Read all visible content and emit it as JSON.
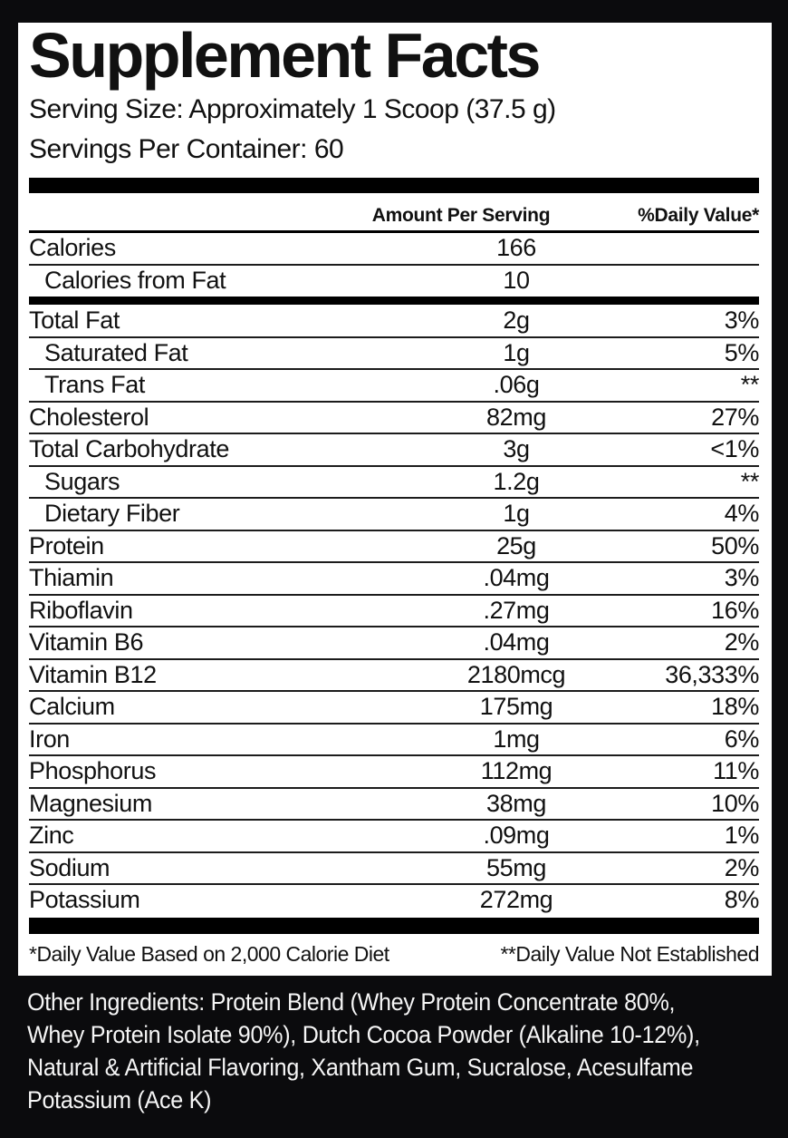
{
  "title": "Supplement Facts",
  "serving": {
    "size_line": "Serving Size: Approximately 1 Scoop (37.5 g)",
    "per_container_line": "Servings Per Container: 60"
  },
  "table": {
    "col_amount_header": "Amount Per Serving",
    "col_dv_header": "%Daily Value*",
    "calorie_rows": [
      {
        "label": "Calories",
        "amount": "166",
        "dv": "",
        "indent": false
      },
      {
        "label": "Calories from Fat",
        "amount": "10",
        "dv": "",
        "indent": true
      }
    ],
    "nutrient_rows": [
      {
        "label": "Total Fat",
        "amount": "2g",
        "dv": "3%",
        "indent": false
      },
      {
        "label": "Saturated Fat",
        "amount": "1g",
        "dv": "5%",
        "indent": true
      },
      {
        "label": "Trans Fat",
        "amount": ".06g",
        "dv": "**",
        "indent": true
      },
      {
        "label": "Cholesterol",
        "amount": "82mg",
        "dv": "27%",
        "indent": false
      },
      {
        "label": "Total Carbohydrate",
        "amount": "3g",
        "dv": "<1%",
        "indent": false
      },
      {
        "label": "Sugars",
        "amount": "1.2g",
        "dv": "**",
        "indent": true
      },
      {
        "label": "Dietary Fiber",
        "amount": "1g",
        "dv": "4%",
        "indent": true
      },
      {
        "label": "Protein",
        "amount": "25g",
        "dv": "50%",
        "indent": false
      },
      {
        "label": "Thiamin",
        "amount": ".04mg",
        "dv": "3%",
        "indent": false
      },
      {
        "label": "Riboflavin",
        "amount": ".27mg",
        "dv": "16%",
        "indent": false
      },
      {
        "label": "Vitamin B6",
        "amount": ".04mg",
        "dv": "2%",
        "indent": false
      },
      {
        "label": "Vitamin B12",
        "amount": "2180mcg",
        "dv": "36,333%",
        "indent": false
      },
      {
        "label": "Calcium",
        "amount": "175mg",
        "dv": "18%",
        "indent": false
      },
      {
        "label": "Iron",
        "amount": "1mg",
        "dv": "6%",
        "indent": false
      },
      {
        "label": "Phosphorus",
        "amount": "112mg",
        "dv": "11%",
        "indent": false
      },
      {
        "label": "Magnesium",
        "amount": "38mg",
        "dv": "10%",
        "indent": false
      },
      {
        "label": "Zinc",
        "amount": ".09mg",
        "dv": "1%",
        "indent": false
      },
      {
        "label": "Sodium",
        "amount": "55mg",
        "dv": "2%",
        "indent": false
      },
      {
        "label": "Potassium",
        "amount": "272mg",
        "dv": "8%",
        "indent": false
      }
    ]
  },
  "footnotes": {
    "daily_value": "*Daily Value Based on 2,000 Calorie Diet",
    "not_established": "**Daily Value Not Established"
  },
  "other_ingredients": {
    "lines": [
      "Other Ingredients: Protein Blend (Whey Protein Concentrate 80%,",
      "Whey Protein Isolate 90%), Dutch Cocoa Powder (Alkaline 10-12%),",
      "Natural & Artificial Flavoring, Xantham Gum, Sucralose, Acesulfame",
      "Potassium (Ace K)"
    ]
  },
  "colors": {
    "background": "#0b0b0d",
    "panel": "#ffffff",
    "bar": "#000000",
    "text": "#111111",
    "ingredients_text": "#f6f6f6"
  }
}
